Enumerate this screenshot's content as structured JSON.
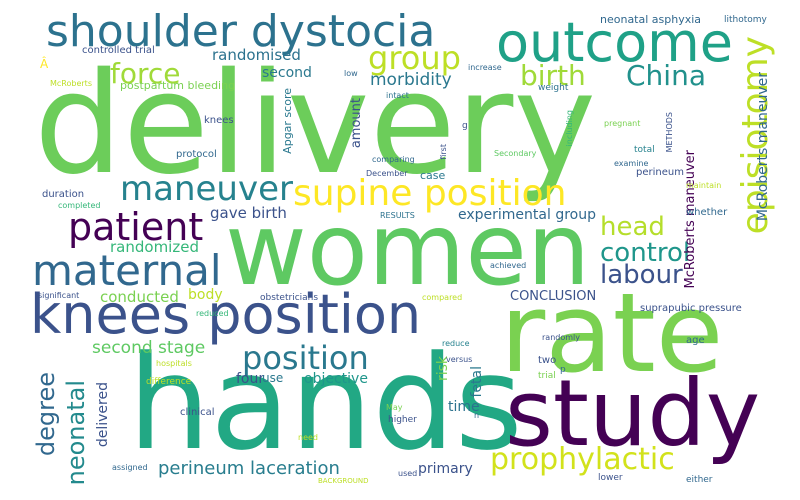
{
  "words": {
    "delivery": "delivery",
    "women": "women",
    "rate": "rate",
    "hands": "hands",
    "study": "study",
    "knees_position": "knees position",
    "shoulder_dystocia": "shoulder dystocia",
    "outcome": "outcome",
    "episiotomy": "episiotomy",
    "maternal": "maternal",
    "supine_position": "supine position",
    "maneuver": "maneuver",
    "patient": "patient",
    "position": "position",
    "group": "group",
    "birth": "birth",
    "force": "force",
    "china": "China",
    "prophylactic": "prophylactic",
    "control": "control",
    "head": "head",
    "labour": "labour",
    "neonatal": "neonatal",
    "degree": "degree",
    "perineum_laceration": "perineum laceration",
    "second_stage": "second stage",
    "morbidity": "morbidity",
    "randomised": "randomised",
    "second": "second",
    "randomized": "randomized",
    "conducted": "conducted",
    "body": "body",
    "gave_birth": "gave birth",
    "experimental_group": "experimental group",
    "objective": "objective",
    "four": "four",
    "use": "use",
    "time": "time",
    "primary": "primary",
    "conclusion": "CONCLUSION",
    "mcroberts_maneuver_v": "McRoberts maneuver",
    "mcroberts_maneuver_2": "McRoberts maneuver",
    "risk": "risk",
    "fetal": "fetal",
    "delivered": "delivered",
    "amount": "amount",
    "apgar_score": "Apgar score",
    "neonatal_asphyxia": "neonatal asphyxia",
    "lithotomy": "lithotomy",
    "postpartum_bleeding": "postpartum bleeding",
    "controlled_trial": "controlled trial",
    "a_hat": "Â",
    "mcroberts": "McRoberts",
    "knees": "knees",
    "protocol": "protocol",
    "duration": "duration",
    "completed": "completed",
    "low": "low",
    "intact": "intact",
    "increase": "increase",
    "weight": "weight",
    "including": "including",
    "methods": "METHODS",
    "pregnant": "pregnant",
    "total": "total",
    "examine": "examine",
    "maintain": "maintain",
    "perineum": "perineum",
    "whether": "whether",
    "case": "case",
    "december": "December",
    "comparing": "comparing",
    "first": "first",
    "g": "g",
    "secondary": "Secondary",
    "results": "RESULTS",
    "achieved": "achieved",
    "significant": "significant",
    "obstetricians": "obstetricians",
    "suprapubic_pressure": "suprapubic pressure",
    "reduced": "reduced",
    "compared": "compared",
    "reduce": "reduce",
    "randomly": "randomly",
    "age": "age",
    "versus": "versus",
    "two": "two",
    "hospitals": "hospitals",
    "difference": "difference",
    "trial": "trial",
    "p": "p",
    "clinical": "clinical",
    "may": "May",
    "higher": "higher",
    "n": "n",
    "need": "need",
    "assigned": "assigned",
    "background": "BACKGROUND",
    "used": "used",
    "lower": "lower",
    "either": "either"
  }
}
